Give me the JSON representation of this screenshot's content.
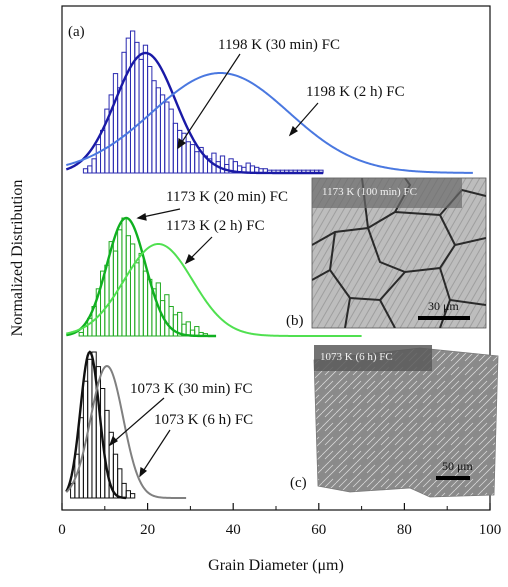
{
  "chart_data": {
    "type": "histogram-with-fits",
    "xlabel": "Grain Diameter (μm)",
    "ylabel": "Normalized Distribution",
    "xlim": [
      0,
      100
    ],
    "xticks": [
      0,
      20,
      40,
      60,
      80,
      100
    ],
    "panels": [
      {
        "id": "a",
        "tag": "(a)",
        "accent": "#1a1aa6",
        "series": [
          {
            "name": "1198 K (30 min) FC",
            "mean": 19.5,
            "sigma": 7,
            "color": "#1a1aa6",
            "xmin": 1,
            "xmax": 61
          },
          {
            "name": "1198 K (2 h) FC",
            "mean": 37,
            "sigma": 16,
            "color": "#4a78e0",
            "xmin": 1,
            "xmax": 96
          }
        ],
        "histogram": {
          "color": "#2a2ab0",
          "bin_width": 1,
          "bins_start": 5,
          "heights": [
            0.03,
            0.05,
            0.1,
            0.2,
            0.3,
            0.45,
            0.55,
            0.7,
            0.6,
            0.85,
            0.95,
            1.0,
            0.92,
            0.8,
            0.9,
            0.75,
            0.65,
            0.6,
            0.55,
            0.5,
            0.45,
            0.35,
            0.3,
            0.28,
            0.22,
            0.2,
            0.15,
            0.18,
            0.12,
            0.1,
            0.14,
            0.08,
            0.12,
            0.06,
            0.1,
            0.08,
            0.05,
            0.04,
            0.07,
            0.05,
            0.04,
            0.03,
            0.03,
            0.02,
            0.02,
            0.02,
            0.02,
            0.02,
            0.02,
            0.02,
            0.02,
            0.02,
            0.02,
            0.02,
            0.02,
            0.02
          ]
        }
      },
      {
        "id": "b",
        "tag": "(b)",
        "accent": "#10b020",
        "series": [
          {
            "name": "1173 K (20 min) FC",
            "mean": 15,
            "sigma": 4.5,
            "color": "#10b020",
            "xmin": 1,
            "xmax": 36
          },
          {
            "name": "1173 K (2 h) FC",
            "mean": 22.5,
            "sigma": 8,
            "color": "#50e050",
            "xmin": 1,
            "xmax": 70
          }
        ],
        "histogram": {
          "color": "#22aa22",
          "bin_width": 1,
          "bins_start": 4,
          "heights": [
            0.03,
            0.08,
            0.15,
            0.25,
            0.4,
            0.55,
            0.6,
            0.8,
            0.72,
            0.9,
            1.0,
            0.85,
            0.78,
            0.62,
            0.7,
            0.55,
            0.48,
            0.4,
            0.45,
            0.3,
            0.35,
            0.25,
            0.18,
            0.2,
            0.1,
            0.12,
            0.05,
            0.08,
            0.03,
            0.02
          ]
        },
        "inset": {
          "title": "1173 K (100 min) FC",
          "scalebar": "30 μm"
        }
      },
      {
        "id": "c",
        "tag": "(c)",
        "accent": "#111111",
        "series": [
          {
            "name": "1073 K (30 min) FC",
            "mean": 6.5,
            "sigma": 2.2,
            "color": "#111111",
            "xmin": 1,
            "xmax": 15
          },
          {
            "name": "1073 K (6 h) FC",
            "mean": 10.5,
            "sigma": 3.8,
            "color": "#808080",
            "xmin": 1,
            "xmax": 29
          }
        ],
        "histogram": {
          "color": "#111111",
          "bin_width": 1,
          "bins_start": 2,
          "heights": [
            0.1,
            0.3,
            0.55,
            0.8,
            0.95,
            1.0,
            0.9,
            0.75,
            0.6,
            0.45,
            0.3,
            0.2,
            0.1,
            0.05,
            0.03
          ]
        },
        "inset": {
          "title": "1073 K (6 h) FC",
          "scalebar": "50 μm"
        }
      }
    ]
  }
}
